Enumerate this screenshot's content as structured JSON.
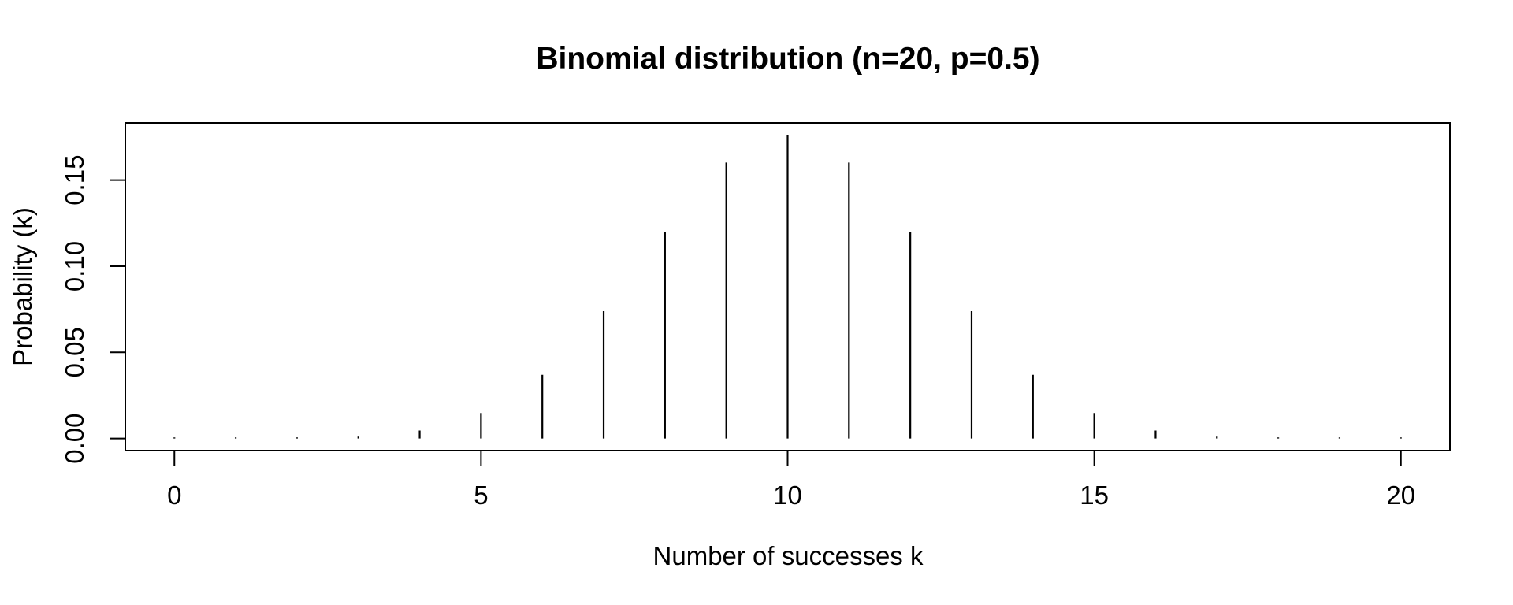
{
  "page": {
    "background_color": "#ffffff",
    "ink_color": "#000000"
  },
  "chart_data": {
    "type": "bar",
    "subtype": "spike-plot (R type='h')",
    "title": "Binomial distribution (n=20, p=0.5)",
    "xlabel": "Number of successes k",
    "ylabel": "Probability (k)",
    "x": [
      0,
      1,
      2,
      3,
      4,
      5,
      6,
      7,
      8,
      9,
      10,
      11,
      12,
      13,
      14,
      15,
      16,
      17,
      18,
      19,
      20
    ],
    "values": [
      1e-06,
      1.9e-05,
      0.000181,
      0.001087,
      0.004621,
      0.014786,
      0.036964,
      0.073929,
      0.120134,
      0.160179,
      0.176197,
      0.160179,
      0.120134,
      0.073929,
      0.036964,
      0.014786,
      0.004621,
      0.001087,
      0.000181,
      1.9e-05,
      1e-06
    ],
    "x_ticks": {
      "values": [
        0,
        5,
        10,
        15,
        20
      ],
      "labels": [
        "0",
        "5",
        "10",
        "15",
        "20"
      ]
    },
    "y_ticks": {
      "values": [
        0.0,
        0.05,
        0.1,
        0.15
      ],
      "labels": [
        "0.00",
        "0.05",
        "0.10",
        "0.15"
      ]
    },
    "xlim": [
      -0.8,
      20.8
    ],
    "ylim": [
      -0.00705,
      0.18325
    ],
    "grid": false,
    "spike_color": "#000000",
    "axis_color": "#000000"
  }
}
